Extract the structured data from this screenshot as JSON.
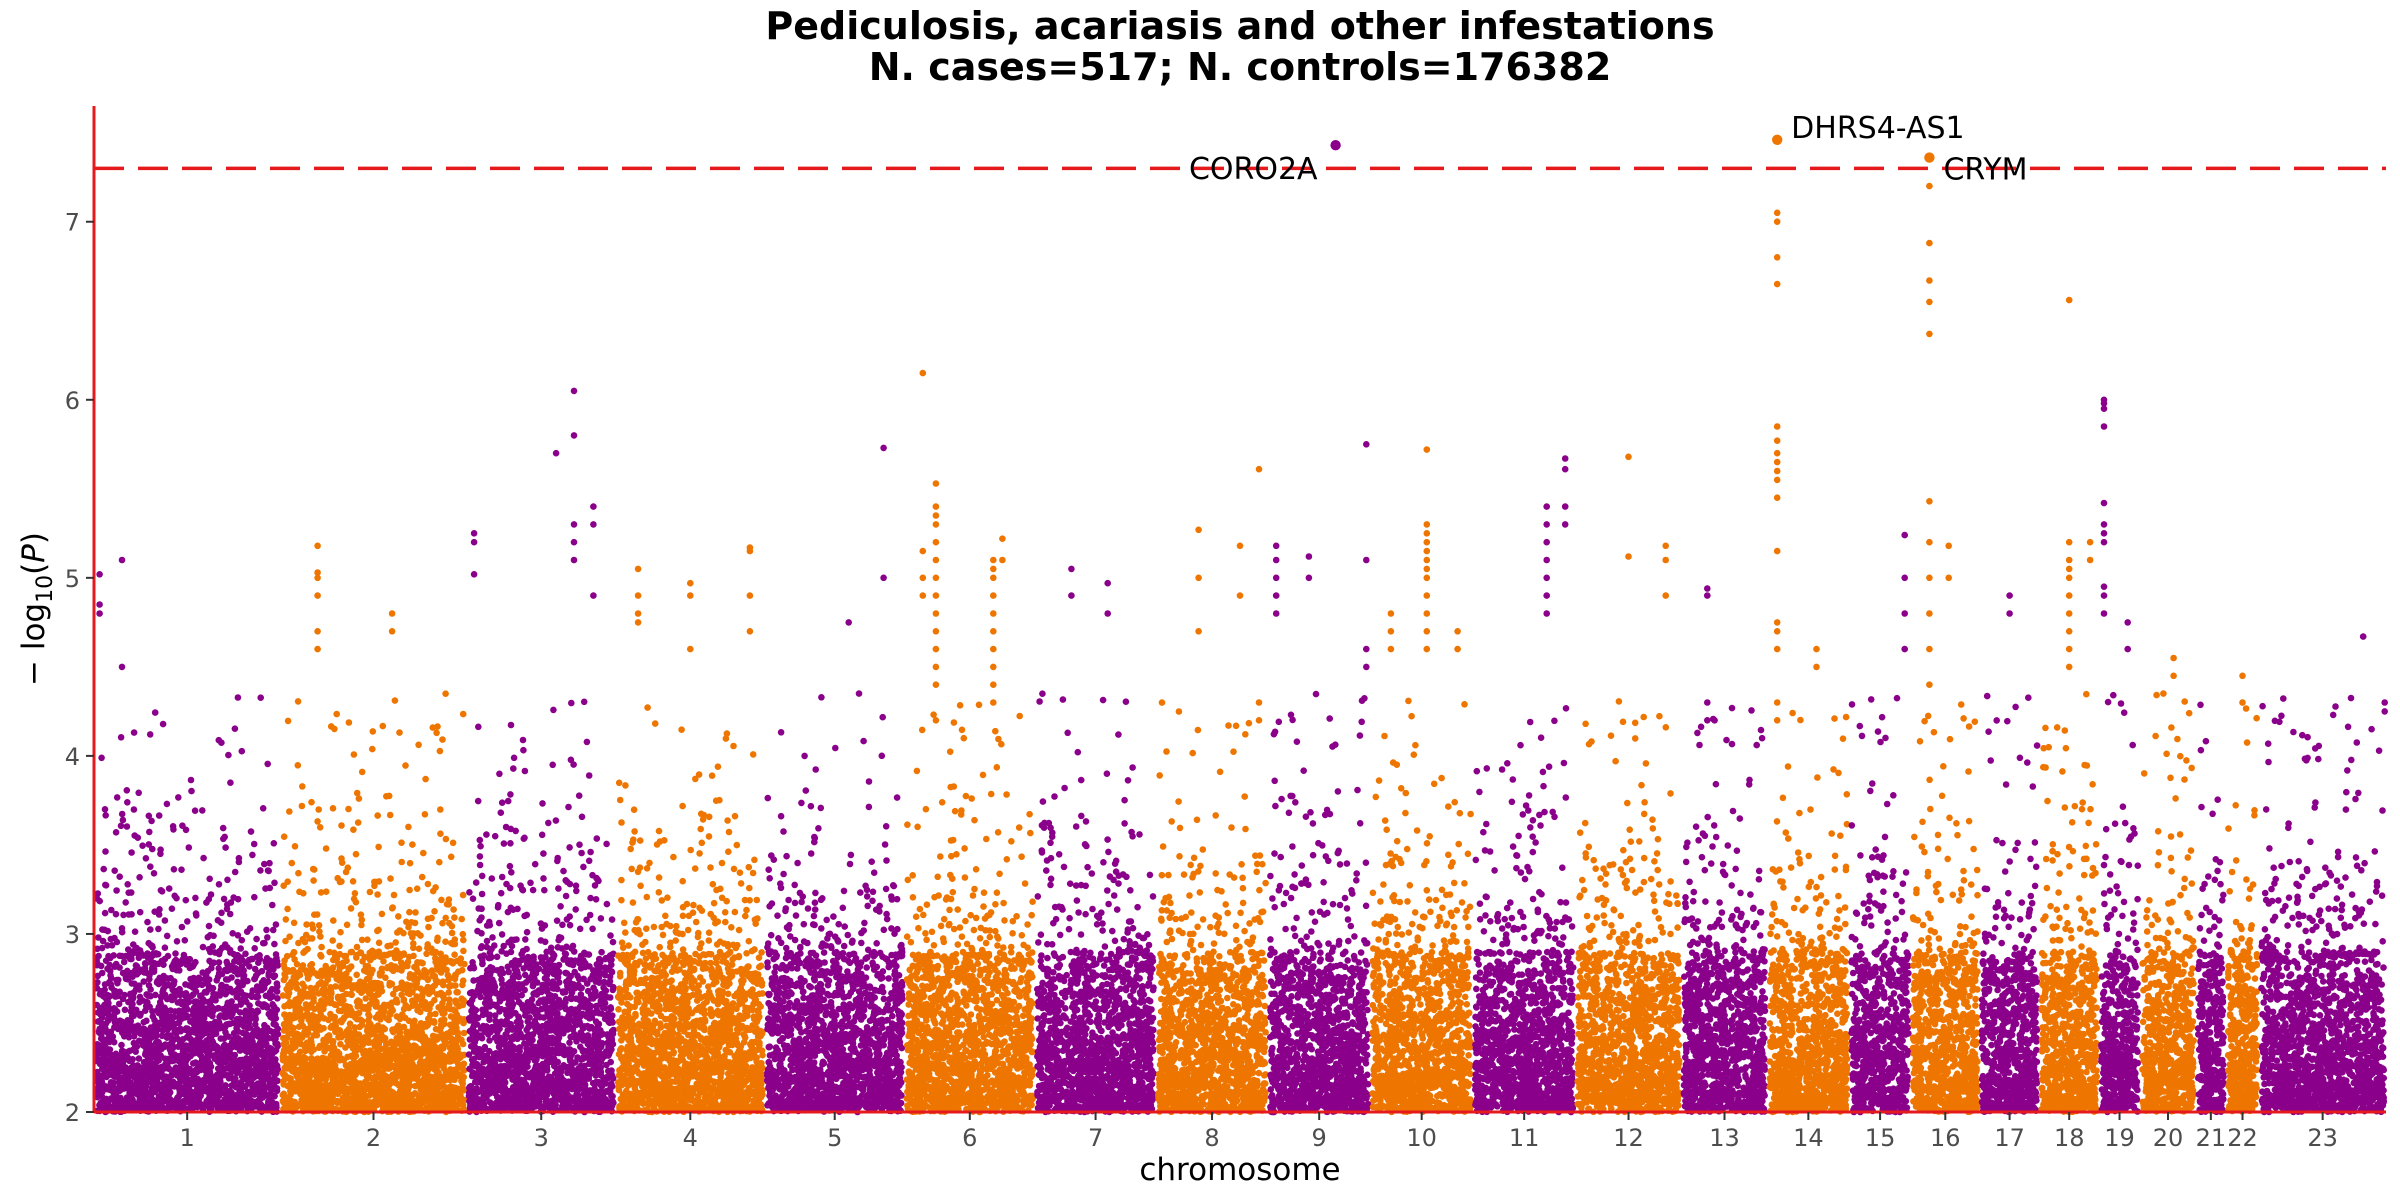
{
  "title": "Pediculosis, acariasis and other infestations",
  "subtitle": "N. cases=517; N. controls=176382",
  "chart_data": {
    "type": "scatter",
    "plot_kind": "manhattan",
    "title": "Pediculosis, acariasis and other infestations",
    "subtitle": "N. cases=517; N. controls=176382",
    "xlabel": "chromosome",
    "ylabel": "−log10(P)",
    "ylim": [
      2,
      7.65
    ],
    "yticks": [
      2,
      3,
      4,
      5,
      6,
      7
    ],
    "significance_threshold": 7.3,
    "threshold_color": "#e41a1c",
    "axis_color": "#e41a1c",
    "colors": {
      "odd": "#8b008b",
      "even": "#ee7600"
    },
    "chromosomes": [
      {
        "label": "1",
        "start": 0,
        "end": 1.0
      },
      {
        "label": "2",
        "start": 1.0,
        "end": 2.0
      },
      {
        "label": "3",
        "start": 2.0,
        "end": 2.8
      },
      {
        "label": "4",
        "start": 2.8,
        "end": 3.6
      },
      {
        "label": "5",
        "start": 3.6,
        "end": 4.35
      },
      {
        "label": "6",
        "start": 4.35,
        "end": 5.05
      },
      {
        "label": "7",
        "start": 5.05,
        "end": 5.7
      },
      {
        "label": "8",
        "start": 5.7,
        "end": 6.3
      },
      {
        "label": "9",
        "start": 6.3,
        "end": 6.85
      },
      {
        "label": "10",
        "start": 6.85,
        "end": 7.4
      },
      {
        "label": "11",
        "start": 7.4,
        "end": 7.95
      },
      {
        "label": "12",
        "start": 7.95,
        "end": 8.52
      },
      {
        "label": "13",
        "start": 8.52,
        "end": 8.98
      },
      {
        "label": "14",
        "start": 8.98,
        "end": 9.42
      },
      {
        "label": "15",
        "start": 9.42,
        "end": 9.75
      },
      {
        "label": "16",
        "start": 9.75,
        "end": 10.12
      },
      {
        "label": "17",
        "start": 10.12,
        "end": 10.44
      },
      {
        "label": "18",
        "start": 10.44,
        "end": 10.76
      },
      {
        "label": "19",
        "start": 10.76,
        "end": 10.98
      },
      {
        "label": "20",
        "start": 10.98,
        "end": 11.28
      },
      {
        "label": "21",
        "start": 11.28,
        "end": 11.44
      },
      {
        "label": "22",
        "start": 11.44,
        "end": 11.62
      },
      {
        "label": "23",
        "start": 11.62,
        "end": 12.3
      }
    ],
    "peaks": [
      {
        "chr": "1",
        "pos": 0.03,
        "values": [
          4.8,
          4.85,
          5.02
        ]
      },
      {
        "chr": "1",
        "pos": 0.15,
        "values": [
          5.1,
          4.5
        ]
      },
      {
        "chr": "2",
        "pos": 0.2,
        "values": [
          5.03,
          5.0,
          4.9,
          4.7,
          4.6,
          5.18
        ]
      },
      {
        "chr": "2",
        "pos": 0.6,
        "values": [
          4.7,
          4.8
        ]
      },
      {
        "chr": "3",
        "pos": 0.05,
        "values": [
          5.25,
          5.2,
          5.02
        ]
      },
      {
        "chr": "3",
        "pos": 0.6,
        "values": [
          5.7
        ]
      },
      {
        "chr": "3",
        "pos": 0.72,
        "values": [
          6.05,
          5.8,
          5.3,
          5.2,
          5.1
        ]
      },
      {
        "chr": "3",
        "pos": 0.85,
        "values": [
          5.4,
          5.3,
          4.9
        ]
      },
      {
        "chr": "4",
        "pos": 0.15,
        "values": [
          5.05,
          4.9,
          4.8,
          4.75
        ]
      },
      {
        "chr": "4",
        "pos": 0.5,
        "values": [
          4.97,
          4.9,
          4.6
        ]
      },
      {
        "chr": "4",
        "pos": 0.9,
        "values": [
          5.17,
          5.15,
          4.9,
          4.7
        ]
      },
      {
        "chr": "5",
        "pos": 0.6,
        "values": [
          4.75
        ]
      },
      {
        "chr": "5",
        "pos": 0.85,
        "values": [
          5.73,
          5.0
        ]
      },
      {
        "chr": "6",
        "pos": 0.14,
        "values": [
          6.15,
          5.15,
          5.0,
          4.9
        ]
      },
      {
        "chr": "6",
        "pos": 0.24,
        "values": [
          5.53,
          5.4,
          5.35,
          5.3,
          5.2,
          5.1,
          5.0,
          4.9,
          4.8,
          4.7,
          4.6,
          4.5,
          4.4,
          4.2
        ]
      },
      {
        "chr": "6",
        "pos": 0.68,
        "values": [
          5.1,
          5.05,
          5.0,
          4.9,
          4.8,
          4.7,
          4.6,
          4.5,
          4.4,
          4.3
        ]
      },
      {
        "chr": "6",
        "pos": 0.75,
        "values": [
          5.22,
          5.1
        ]
      },
      {
        "chr": "7",
        "pos": 0.3,
        "values": [
          5.05,
          4.9
        ]
      },
      {
        "chr": "7",
        "pos": 0.6,
        "values": [
          4.97,
          4.8
        ]
      },
      {
        "chr": "8",
        "pos": 0.38,
        "values": [
          5.27,
          5.0,
          4.7
        ]
      },
      {
        "chr": "8",
        "pos": 0.75,
        "values": [
          5.18,
          4.9
        ]
      },
      {
        "chr": "8",
        "pos": 0.92,
        "values": [
          5.61,
          4.3,
          4.2
        ]
      },
      {
        "chr": "9",
        "pos": 0.08,
        "values": [
          5.18,
          5.1,
          5.0,
          4.9,
          4.8
        ]
      },
      {
        "chr": "9",
        "pos": 0.4,
        "values": [
          5.12,
          5.0
        ]
      },
      {
        "chr": "9",
        "pos": 0.66,
        "values": [
          7.43
        ],
        "label": "CORO2A"
      },
      {
        "chr": "9",
        "pos": 0.96,
        "values": [
          5.75,
          5.1,
          4.6,
          4.5
        ]
      },
      {
        "chr": "10",
        "pos": 0.2,
        "values": [
          4.7,
          4.6,
          4.8
        ]
      },
      {
        "chr": "10",
        "pos": 0.55,
        "values": [
          5.72,
          5.3,
          5.25,
          5.2,
          5.15,
          5.1,
          5.05,
          5.0,
          4.9,
          4.8,
          4.7,
          4.6
        ]
      },
      {
        "chr": "10",
        "pos": 0.85,
        "values": [
          4.7,
          4.6
        ]
      },
      {
        "chr": "11",
        "pos": 0.72,
        "values": [
          5.4,
          5.3,
          5.2,
          5.1,
          5.0,
          4.9,
          4.8
        ]
      },
      {
        "chr": "11",
        "pos": 0.9,
        "values": [
          5.61,
          5.67,
          5.4,
          5.3
        ]
      },
      {
        "chr": "12",
        "pos": 0.5,
        "values": [
          5.68,
          5.12
        ]
      },
      {
        "chr": "12",
        "pos": 0.85,
        "values": [
          5.18,
          5.1,
          4.9
        ]
      },
      {
        "chr": "13",
        "pos": 0.3,
        "values": [
          4.94,
          4.9,
          4.3,
          4.2
        ]
      },
      {
        "chr": "14",
        "pos": 0.12,
        "values": [
          7.46,
          7.05,
          7.0,
          6.8,
          6.65,
          5.85,
          5.77,
          5.7,
          5.65,
          5.6,
          5.55,
          5.45,
          5.15,
          4.75,
          4.7,
          4.6,
          4.3,
          4.2
        ],
        "label": "DHRS4-AS1"
      },
      {
        "chr": "14",
        "pos": 0.6,
        "values": [
          4.6,
          4.5
        ]
      },
      {
        "chr": "15",
        "pos": 0.9,
        "values": [
          5.24,
          5.0,
          4.8,
          4.6
        ]
      },
      {
        "chr": "16",
        "pos": 0.27,
        "values": [
          7.36,
          7.2,
          6.88,
          6.67,
          6.55,
          6.37,
          5.43,
          5.2,
          5.0,
          4.8,
          4.6,
          4.4
        ],
        "label": "CRYM"
      },
      {
        "chr": "16",
        "pos": 0.55,
        "values": [
          5.18,
          5.0
        ]
      },
      {
        "chr": "17",
        "pos": 0.5,
        "values": [
          4.9,
          4.8
        ]
      },
      {
        "chr": "18",
        "pos": 0.5,
        "values": [
          6.56,
          5.2,
          5.1,
          5.05,
          5.0,
          4.9,
          4.8,
          4.7,
          4.6,
          4.5
        ]
      },
      {
        "chr": "18",
        "pos": 0.85,
        "values": [
          5.2,
          5.1
        ]
      },
      {
        "chr": "19",
        "pos": 0.12,
        "values": [
          6.0,
          5.98,
          5.95,
          5.85,
          5.42,
          5.3,
          5.25,
          5.2,
          4.95,
          4.9,
          4.8
        ]
      },
      {
        "chr": "19",
        "pos": 0.7,
        "values": [
          4.75,
          4.6
        ]
      },
      {
        "chr": "20",
        "pos": 0.6,
        "values": [
          4.55,
          4.45
        ]
      },
      {
        "chr": "22",
        "pos": 0.5,
        "values": [
          4.45,
          4.3
        ]
      },
      {
        "chr": "23",
        "pos": 0.82,
        "values": [
          4.67
        ]
      },
      {
        "chr": "23",
        "pos": 0.99,
        "values": [
          4.3,
          4.25
        ]
      }
    ],
    "labels": [
      {
        "text": "CORO2A",
        "chr": "9",
        "pos": 0.66,
        "value": 7.43,
        "side": "left"
      },
      {
        "text": "DHRS4-AS1",
        "chr": "14",
        "pos": 0.12,
        "value": 7.46,
        "side": "right"
      },
      {
        "text": "CRYM",
        "chr": "16",
        "pos": 0.27,
        "value": 7.36,
        "side": "right"
      }
    ]
  }
}
